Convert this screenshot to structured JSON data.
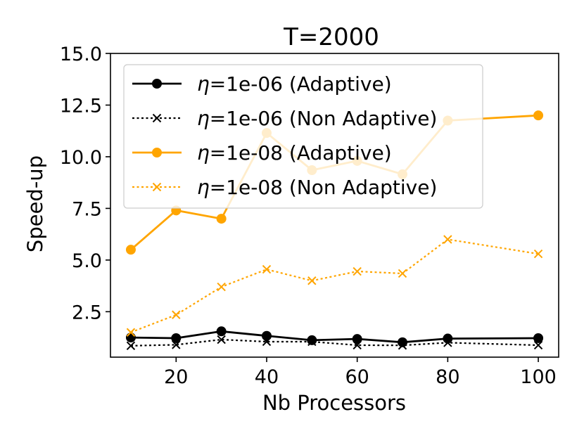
{
  "chart_data": {
    "type": "line",
    "title": "T=2000",
    "xlabel": "Nb Processors",
    "ylabel": "Speed-up",
    "xlim": [
      5.5,
      104.5
    ],
    "ylim": [
      0.3,
      15.0
    ],
    "xticks": [
      20,
      40,
      60,
      80,
      100
    ],
    "yticks": [
      2.5,
      5.0,
      7.5,
      10.0,
      12.5,
      15.0
    ],
    "xtick_labels": [
      "20",
      "40",
      "60",
      "80",
      "100"
    ],
    "ytick_labels": [
      "2.5",
      "5.0",
      "7.5",
      "10.0",
      "12.5",
      "15.0"
    ],
    "grid": false,
    "legend_position": "upper-left",
    "x": [
      10,
      20,
      30,
      40,
      50,
      60,
      70,
      80,
      100
    ],
    "series": [
      {
        "name": "η=1e-06 (Adaptive)",
        "eta": "η",
        "label_rest": "=1e-06 (Adaptive)",
        "color": "#000000",
        "linestyle": "solid",
        "marker": "circle",
        "values": [
          1.25,
          1.22,
          1.55,
          1.33,
          1.12,
          1.18,
          1.02,
          1.2,
          1.22
        ]
      },
      {
        "name": "η=1e-06 (Non Adaptive)",
        "eta": "η",
        "label_rest": "=1e-06 (Non Adaptive)",
        "color": "#000000",
        "linestyle": "dotted",
        "marker": "x",
        "values": [
          0.85,
          0.9,
          1.15,
          1.05,
          1.05,
          0.88,
          0.87,
          1.0,
          0.88
        ]
      },
      {
        "name": "η=1e-08 (Adaptive)",
        "eta": "η",
        "label_rest": "=1e-08 (Adaptive)",
        "color": "#ffa500",
        "linestyle": "solid",
        "marker": "circle",
        "values": [
          5.5,
          7.4,
          7.0,
          11.15,
          9.35,
          9.8,
          9.15,
          11.75,
          12.0
        ]
      },
      {
        "name": "η=1e-08 (Non Adaptive)",
        "eta": "η",
        "label_rest": "=1e-08 (Non Adaptive)",
        "color": "#ffa500",
        "linestyle": "dotted",
        "marker": "x",
        "values": [
          1.5,
          2.35,
          3.7,
          4.55,
          4.0,
          4.45,
          4.35,
          6.0,
          5.3
        ]
      }
    ]
  }
}
